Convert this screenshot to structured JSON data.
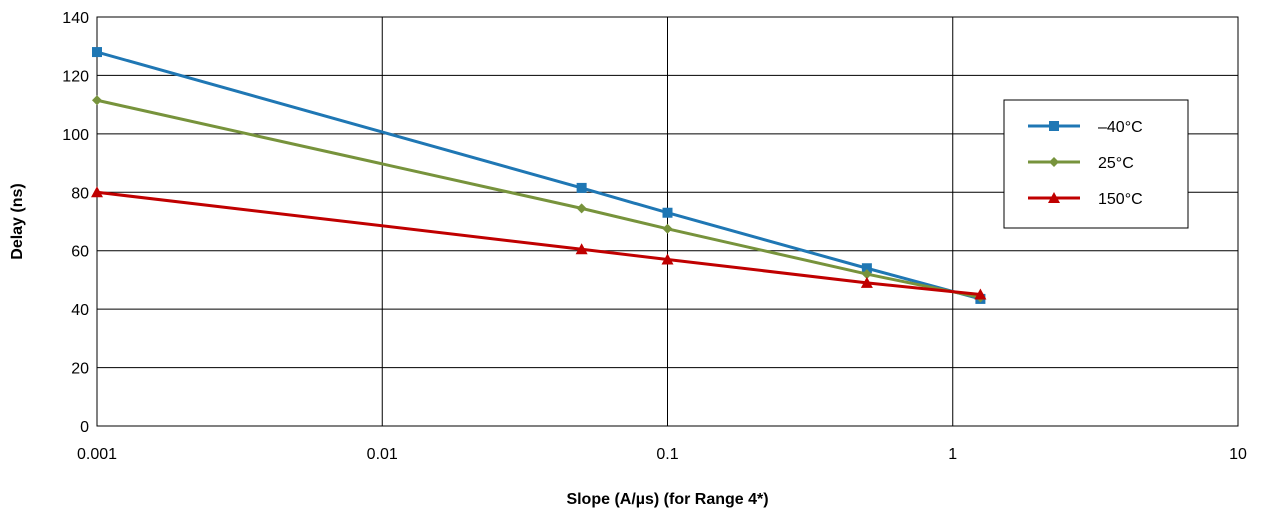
{
  "chart_data": {
    "type": "line",
    "xlabel": "Slope (A/µs) (for Range 4*)",
    "ylabel": "Delay (ns)",
    "x_scale": "log",
    "xlim": [
      0.001,
      10
    ],
    "ylim": [
      0,
      140
    ],
    "x_ticks": [
      {
        "value": 0.001,
        "label": "0.001"
      },
      {
        "value": 0.01,
        "label": "0.01"
      },
      {
        "value": 0.1,
        "label": "0.1"
      },
      {
        "value": 1,
        "label": "1"
      },
      {
        "value": 10,
        "label": "10"
      }
    ],
    "y_ticks": [
      {
        "value": 0,
        "label": "0"
      },
      {
        "value": 20,
        "label": "20"
      },
      {
        "value": 40,
        "label": "40"
      },
      {
        "value": 60,
        "label": "60"
      },
      {
        "value": 80,
        "label": "80"
      },
      {
        "value": 100,
        "label": "100"
      },
      {
        "value": 120,
        "label": "120"
      },
      {
        "value": 140,
        "label": "140"
      }
    ],
    "grid": true,
    "legend_position": "right",
    "series": [
      {
        "name": "–40°C",
        "color": "#1f77b4",
        "marker": "square",
        "x": [
          0.001,
          0.05,
          0.1,
          0.5,
          1.25
        ],
        "y": [
          128,
          81.5,
          73,
          54,
          43.5
        ]
      },
      {
        "name": "25°C",
        "color": "#77933c",
        "marker": "diamond",
        "x": [
          0.001,
          0.05,
          0.1,
          0.5,
          1.25
        ],
        "y": [
          111.5,
          74.5,
          67.5,
          52,
          44
        ]
      },
      {
        "name": "150°C",
        "color": "#c00000",
        "marker": "triangle",
        "x": [
          0.001,
          0.05,
          0.1,
          0.5,
          1.25
        ],
        "y": [
          80,
          60.5,
          57,
          49,
          45
        ]
      }
    ]
  }
}
